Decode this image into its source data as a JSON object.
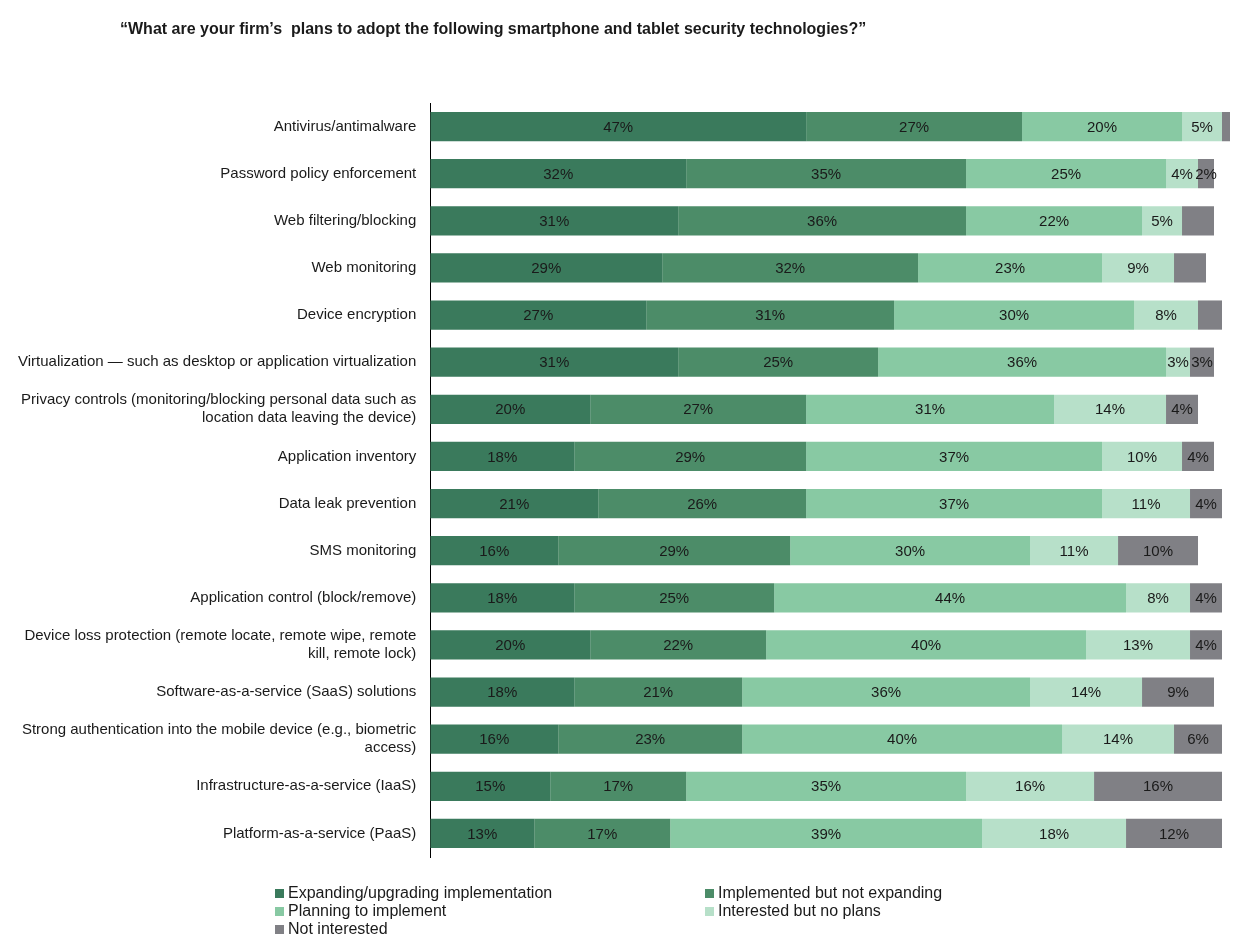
{
  "chart_data": {
    "type": "bar",
    "orientation": "horizontal",
    "stacked": true,
    "title": "“What are your firm’s  plans to adopt the following smartphone and tablet security technologies?”",
    "categories": [
      "Antivirus/antimalware",
      "Password policy enforcement",
      "Web filtering/blocking",
      "Web monitoring",
      "Device encryption",
      "Virtualization — such as desktop or application virtualization",
      "Privacy controls (monitoring/blocking personal data such as location data leaving the device)",
      "Application inventory",
      "Data leak prevention",
      "SMS monitoring",
      "Application control (block/remove)",
      "Device loss protection (remote locate, remote wipe, remote kill, remote lock)",
      "Software-as-a-service (SaaS) solutions",
      "Strong authentication into the mobile device (e.g., biometric access)",
      "Infrastructure-as-a-service (IaaS)",
      "Platform-as-a-service (PaaS)"
    ],
    "series": [
      {
        "name": "Expanding/upgrading implementation",
        "color": "#3a7a5c",
        "values": [
          47,
          32,
          31,
          29,
          27,
          31,
          20,
          18,
          21,
          16,
          18,
          20,
          18,
          16,
          15,
          13
        ],
        "value_labels": [
          "47%",
          "32%",
          "31%",
          "29%",
          "27%",
          "31%",
          "20%",
          "18%",
          "21%",
          "16%",
          "18%",
          "20%",
          "18%",
          "16%",
          "15%",
          "13%"
        ]
      },
      {
        "name": "Implemented but not expanding",
        "color": "#4c8c68",
        "values": [
          27,
          35,
          36,
          32,
          31,
          25,
          27,
          29,
          26,
          29,
          25,
          22,
          21,
          23,
          17,
          17
        ],
        "value_labels": [
          "27%",
          "35%",
          "36%",
          "32%",
          "31%",
          "25%",
          "27%",
          "29%",
          "26%",
          "29%",
          "25%",
          "22%",
          "21%",
          "23%",
          "17%",
          "17%"
        ]
      },
      {
        "name": "Planning to implement",
        "color": "#88c9a3",
        "values": [
          20,
          25,
          22,
          23,
          30,
          36,
          31,
          37,
          37,
          30,
          44,
          40,
          36,
          40,
          35,
          39
        ],
        "value_labels": [
          "20%",
          "25%",
          "22%",
          "23%",
          "30%",
          "36%",
          "31%",
          "37%",
          "37%",
          "30%",
          "44%",
          "40%",
          "36%",
          "40%",
          "35%",
          "39%"
        ]
      },
      {
        "name": "Interested but no plans",
        "color": "#b7e0c9",
        "values": [
          5,
          4,
          5,
          9,
          8,
          3,
          14,
          10,
          11,
          11,
          8,
          13,
          14,
          14,
          16,
          18
        ],
        "value_labels": [
          "5%",
          "4%",
          "5%",
          "9%",
          "8%",
          "3%",
          "14%",
          "10%",
          "11%",
          "11%",
          "8%",
          "13%",
          "14%",
          "14%",
          "16%",
          "18%"
        ]
      },
      {
        "name": "Not interested",
        "color": "#808085",
        "values": [
          1,
          2,
          4,
          4,
          3,
          3,
          4,
          4,
          4,
          10,
          4,
          4,
          9,
          6,
          16,
          12
        ],
        "value_labels": [
          null,
          "2%",
          null,
          null,
          null,
          "3%",
          "4%",
          "4%",
          "4%",
          "10%",
          "4%",
          "4%",
          "9%",
          "6%",
          "16%",
          "12%"
        ]
      }
    ],
    "legend": "bottom",
    "tick_labels": "y"
  }
}
